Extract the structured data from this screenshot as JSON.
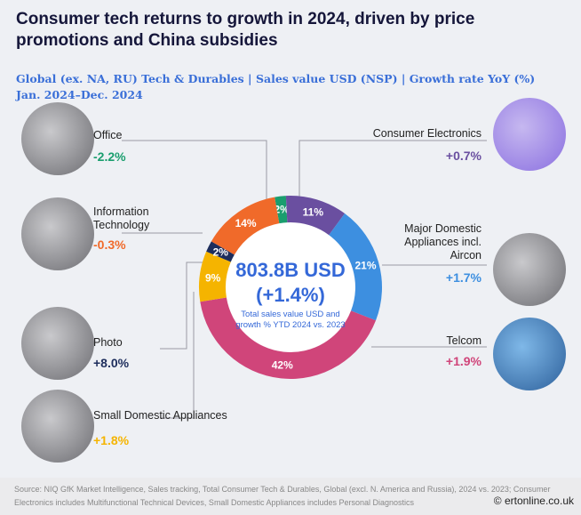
{
  "title": "Consumer tech returns to growth in 2024, driven by price promotions and China subsidies",
  "subtitle_line1": "Global (ex. NA, RU) Tech & Durables | Sales value USD (NSP) | Growth rate YoY (%)",
  "subtitle_line2": "Jan. 2024–Dec. 2024",
  "center": {
    "value": "803.8B USD",
    "growth": "(+1.4%)",
    "caption": "Total sales value USD and growth % YTD 2024 vs. 2023"
  },
  "chart_data": {
    "type": "pie",
    "donut": true,
    "categories": [
      "Office",
      "Consumer Electronics",
      "Major Domestic Appliances incl. Aircon",
      "Telcom",
      "Small Domestic Appliances",
      "Photo",
      "Information Technology"
    ],
    "values": [
      2,
      11,
      21,
      42,
      9,
      2,
      14
    ],
    "value_labels": [
      "2%",
      "11%",
      "21%",
      "42%",
      "9%",
      "2%",
      "14%"
    ],
    "growth_labels": [
      "-2.2%",
      "+0.7%",
      "+1.7%",
      "+1.9%",
      "+1.8%",
      "+8.0%",
      "-0.3%"
    ],
    "colors": [
      "#1a9e6e",
      "#6a4fa0",
      "#3d8fe0",
      "#d0457a",
      "#f5b400",
      "#1d2d5c",
      "#f06a2a"
    ]
  },
  "source": "Source: NIQ GfK Market Intelligence, Sales tracking, Total Consumer Tech & Durables, Global (excl. N. America and Russia), 2024 vs. 2023; Consumer Electronics includes Multifunctional Technical Devices, Small Domestic Appliances includes Personal Diagnostics",
  "watermark": "© ertonline.co.uk"
}
